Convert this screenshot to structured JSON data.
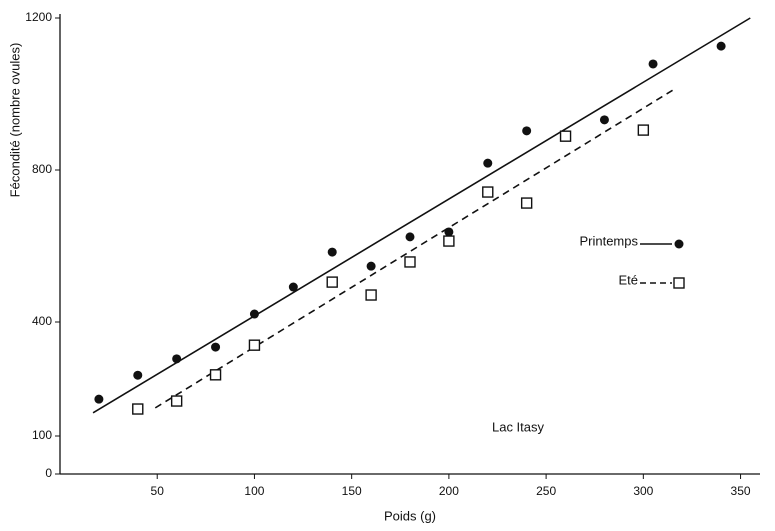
{
  "chart_data": {
    "type": "scatter",
    "x_label": "Poids (g)",
    "y_label": "Fécondité (nombre ovules)",
    "annotation": "Lac Itasy",
    "xlim": [
      0,
      360
    ],
    "ylim": [
      0,
      1200
    ],
    "xticks": [
      50,
      100,
      150,
      200,
      250,
      300,
      350
    ],
    "yticks": [
      0,
      100,
      400,
      800,
      1200
    ],
    "series": [
      {
        "name": "Printemps",
        "color": "#111111",
        "marker": "filled-circle",
        "line": "solid",
        "x": [
          20,
          40,
          60,
          80,
          100,
          120,
          140,
          160,
          180,
          200,
          220,
          240,
          280,
          305,
          340
        ],
        "values": [
          197,
          260,
          303,
          334,
          421,
          492,
          584,
          547,
          624,
          637,
          818,
          903,
          932,
          1079,
          1126
        ],
        "fit_x": [
          17,
          355
        ],
        "fit_values": [
          161,
          1200
        ]
      },
      {
        "name": "Eté",
        "color": "#111111",
        "marker": "open-square",
        "line": "dashed",
        "x": [
          40,
          60,
          80,
          100,
          140,
          160,
          180,
          200,
          220,
          240,
          260,
          300
        ],
        "values": [
          171,
          192,
          261,
          339,
          505,
          471,
          558,
          613,
          742,
          713,
          889,
          905
        ],
        "fit_x": [
          49,
          317
        ],
        "fit_values": [
          174,
          1016
        ]
      }
    ]
  }
}
